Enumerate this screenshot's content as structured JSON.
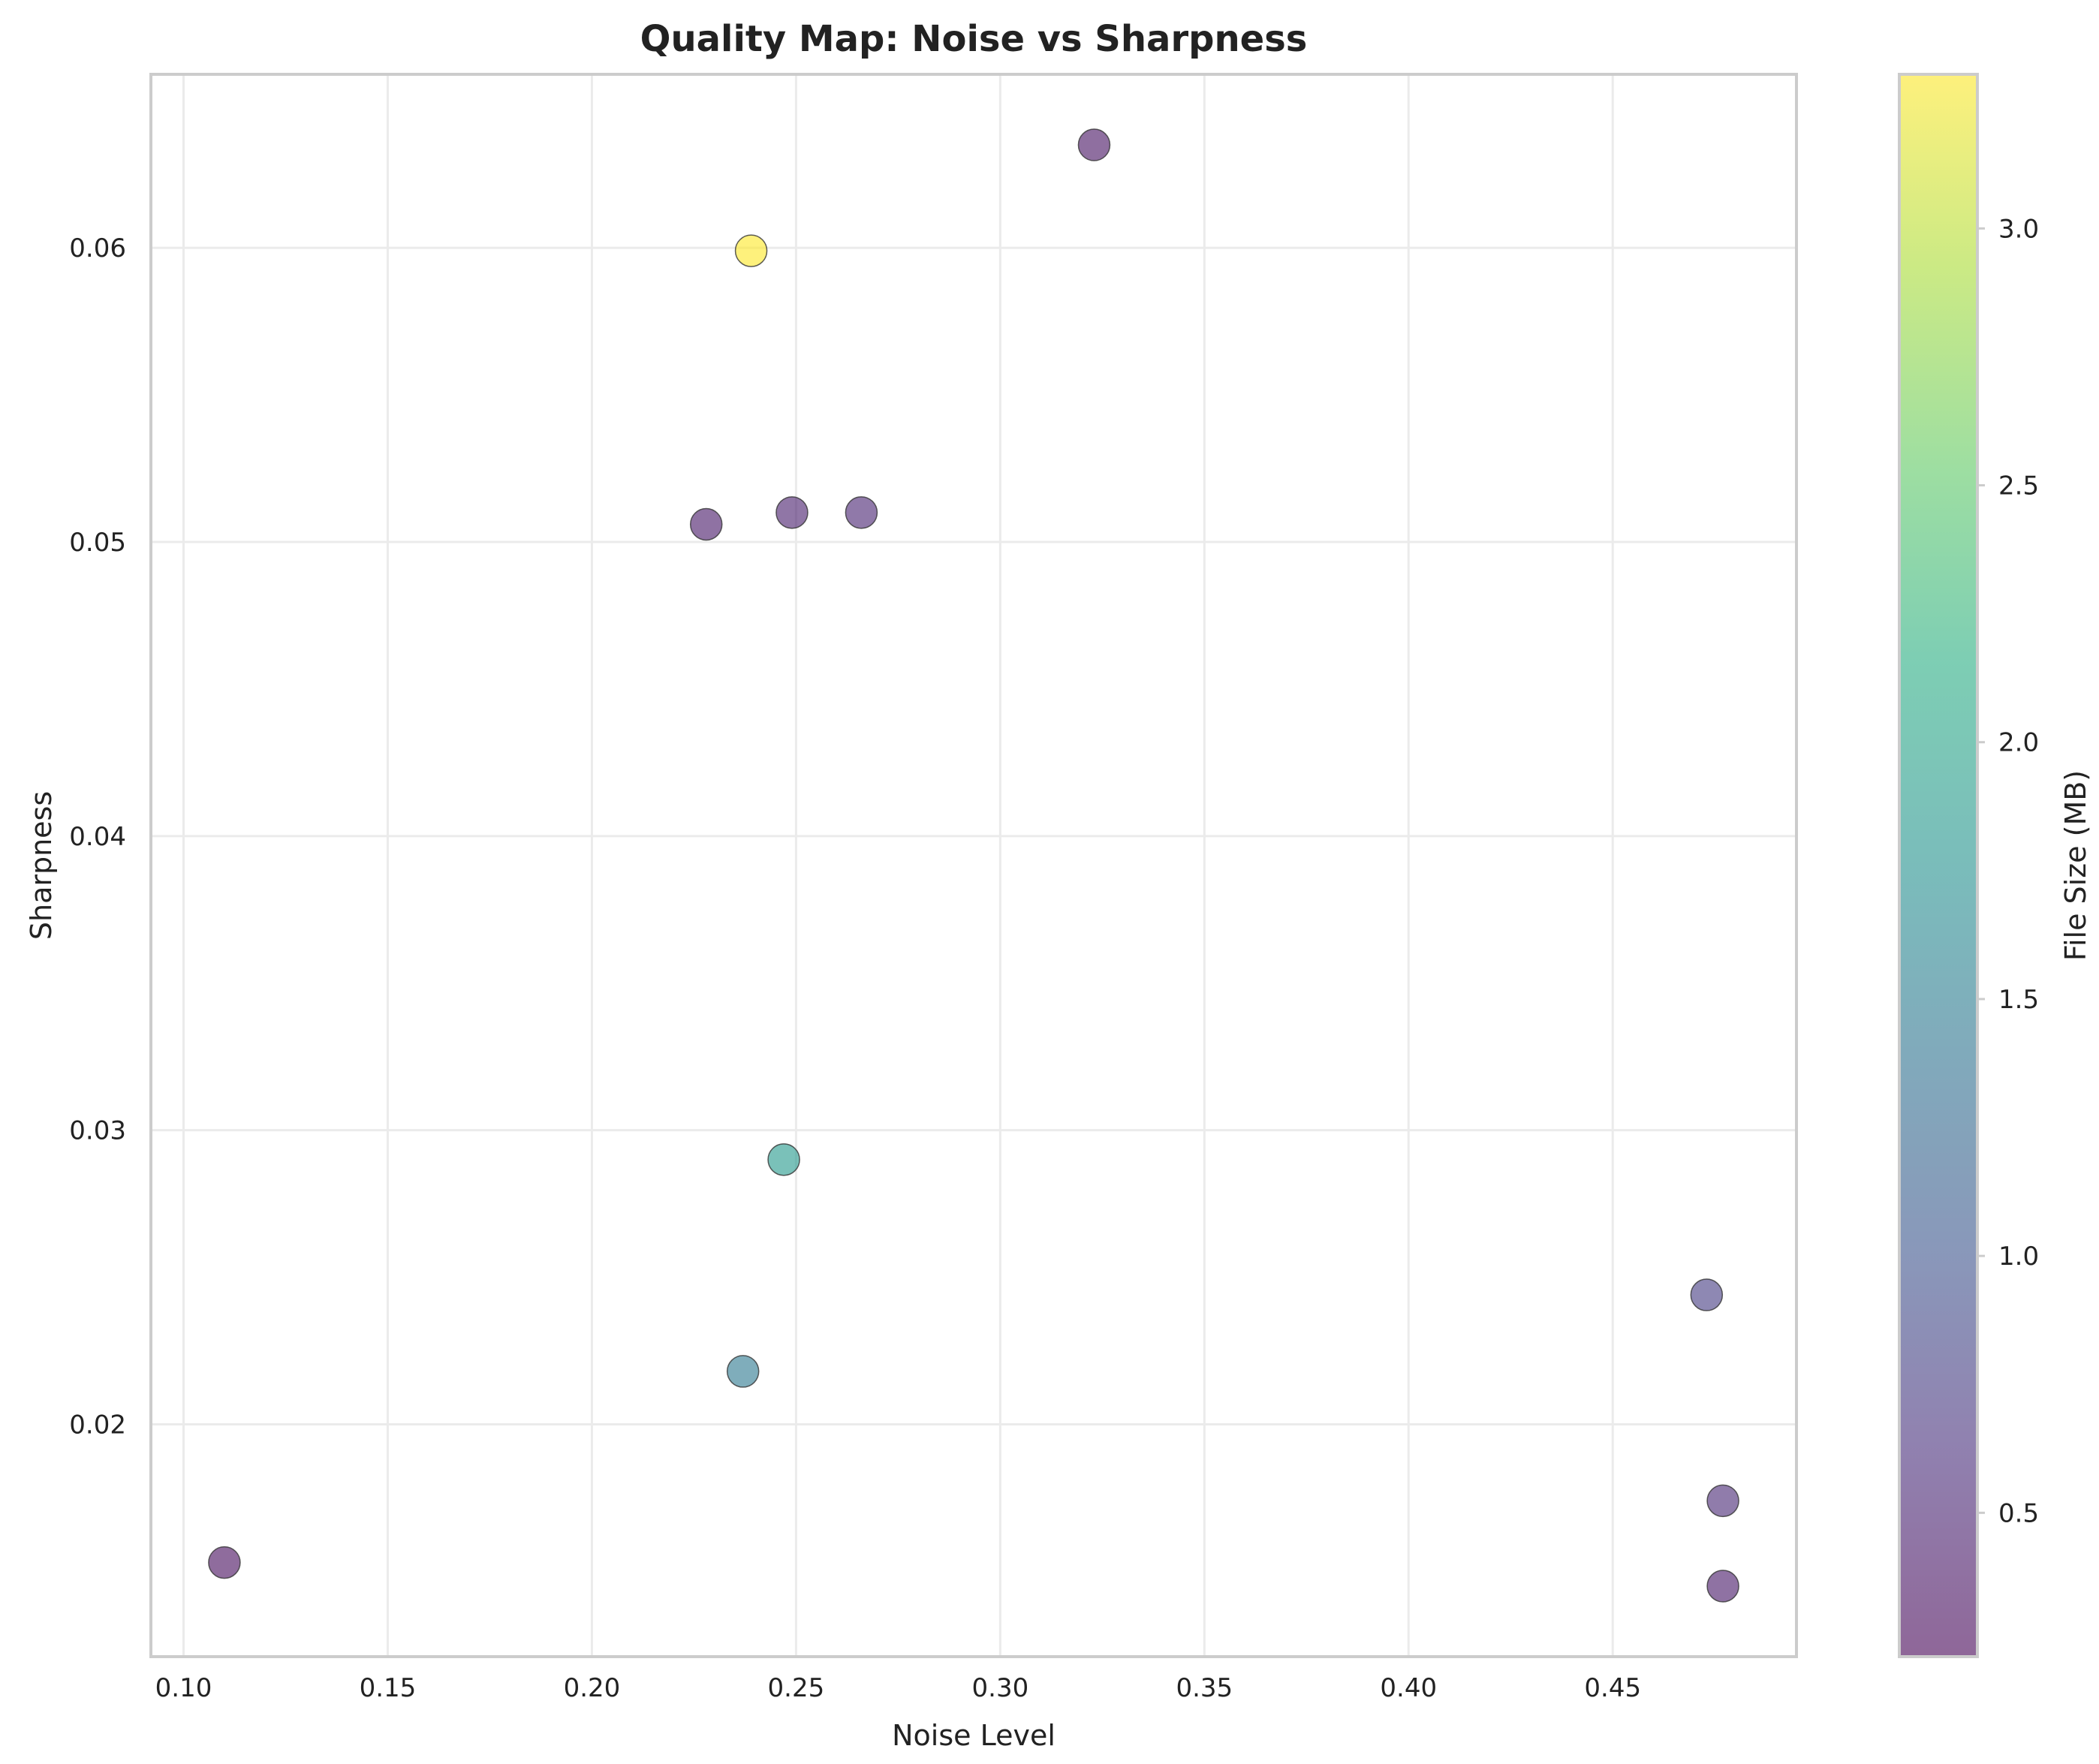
{
  "chart_data": {
    "type": "scatter",
    "title": "Quality Map: Noise vs Sharpness",
    "xlabel": "Noise Level",
    "ylabel": "Sharpness",
    "xlim": [
      0.092,
      0.495
    ],
    "ylim": [
      0.0121,
      0.0659
    ],
    "xticks": [
      0.1,
      0.15,
      0.2,
      0.25,
      0.3,
      0.35,
      0.4,
      0.45
    ],
    "xtick_labels": [
      "0.10",
      "0.15",
      "0.20",
      "0.25",
      "0.30",
      "0.35",
      "0.40",
      "0.45"
    ],
    "yticks": [
      0.02,
      0.03,
      0.04,
      0.05,
      0.06
    ],
    "ytick_labels": [
      "0.02",
      "0.03",
      "0.04",
      "0.05",
      "0.06"
    ],
    "grid": true,
    "colorbar": {
      "label": "File Size (MB)",
      "range": [
        0.22,
        3.3
      ],
      "colormap": "viridis",
      "alpha": 0.6,
      "ticks": [
        0.5,
        1.0,
        1.5,
        2.0,
        2.5,
        3.0
      ],
      "tick_labels": [
        "0.5",
        "1.0",
        "1.5",
        "2.0",
        "2.5",
        "3.0"
      ]
    },
    "points": [
      {
        "x": 0.323,
        "y": 0.0635,
        "size_mb": 0.35
      },
      {
        "x": 0.239,
        "y": 0.0599,
        "size_mb": 3.3
      },
      {
        "x": 0.228,
        "y": 0.0506,
        "size_mb": 0.4
      },
      {
        "x": 0.249,
        "y": 0.051,
        "size_mb": 0.45
      },
      {
        "x": 0.266,
        "y": 0.051,
        "size_mb": 0.5
      },
      {
        "x": 0.247,
        "y": 0.029,
        "size_mb": 1.85
      },
      {
        "x": 0.237,
        "y": 0.0218,
        "size_mb": 1.45
      },
      {
        "x": 0.473,
        "y": 0.0244,
        "size_mb": 0.75
      },
      {
        "x": 0.477,
        "y": 0.0174,
        "size_mb": 0.55
      },
      {
        "x": 0.477,
        "y": 0.0145,
        "size_mb": 0.4
      },
      {
        "x": 0.11,
        "y": 0.0153,
        "size_mb": 0.3
      }
    ]
  }
}
